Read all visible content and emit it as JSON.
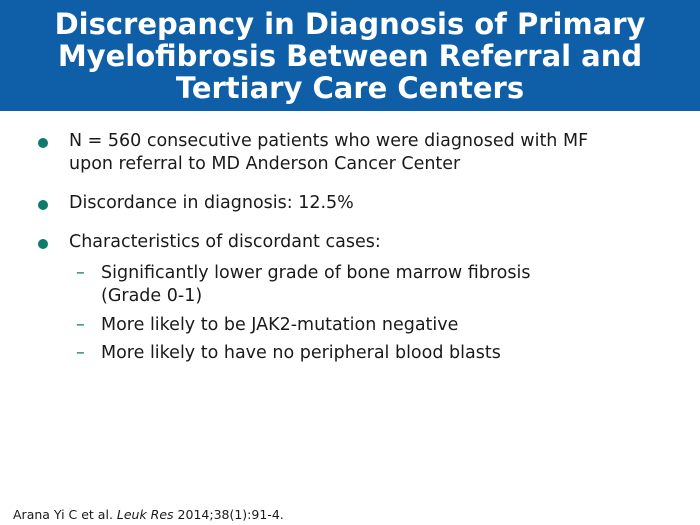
{
  "title": {
    "lines": [
      "Discrepancy in Diagnosis of Primary",
      "Myelofibrosis Between Referral and",
      "Tertiary Care Centers"
    ]
  },
  "colors": {
    "title_background": "#0e5fa8",
    "title_text": "#ffffff",
    "bullet_accent": "#0d7a6b",
    "body_text": "#1a1a1a"
  },
  "bullets": [
    {
      "lines": [
        "N = 560 consecutive patients who were diagnosed with MF",
        "upon referral to MD Anderson Cancer Center"
      ]
    },
    {
      "lines": [
        "Discordance in diagnosis: 12.5%"
      ]
    },
    {
      "lines": [
        "Characteristics of discordant cases:"
      ],
      "subitems": [
        {
          "lines": [
            "Significantly lower grade of bone marrow fibrosis",
            "(Grade 0-1)"
          ]
        },
        {
          "lines": [
            "More likely to be JAK2-mutation negative"
          ]
        },
        {
          "lines": [
            "More likely to have no peripheral blood blasts"
          ]
        }
      ]
    }
  ],
  "citation": {
    "authors": "Arana Yi C et al. ",
    "journal": "Leuk Res",
    "details": " 2014;38(1):91-4."
  }
}
